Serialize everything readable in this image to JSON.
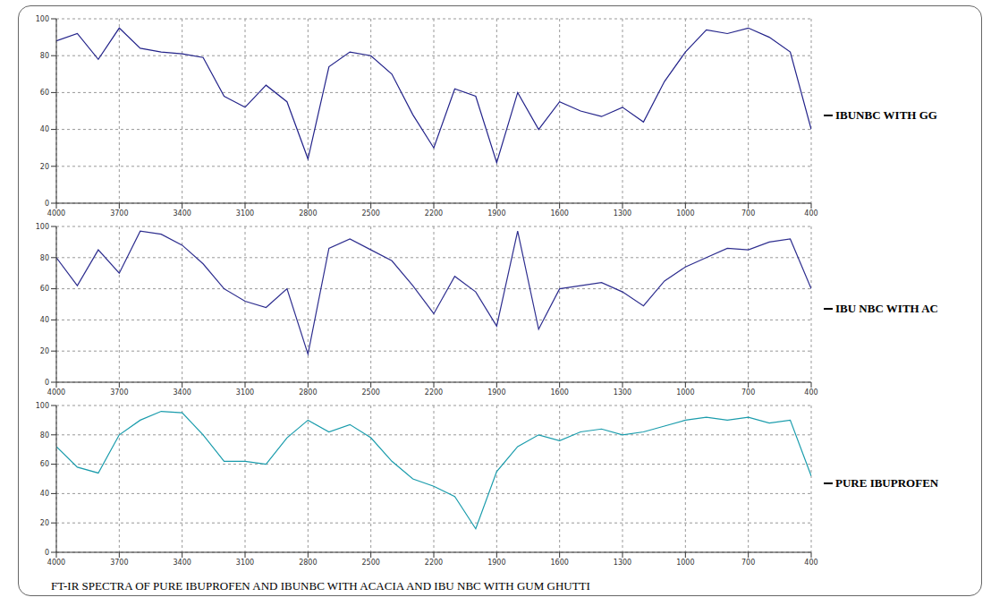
{
  "caption": "FT-IR SPECTRA OF PURE IBUPROFEN AND IBUNBC WITH ACACIA AND IBU NBC WITH GUM GHUTTI",
  "chart_data": [
    {
      "type": "line",
      "title": "IBUNBC WITH GG",
      "color": "#23238a",
      "grid": true,
      "xlim": [
        4000,
        400
      ],
      "xticks": [
        4000,
        3700,
        3400,
        3100,
        2800,
        2500,
        2200,
        1900,
        1600,
        1300,
        1000,
        700,
        400
      ],
      "ylim": [
        0,
        100
      ],
      "yticks": [
        0,
        20,
        40,
        60,
        80,
        100
      ],
      "x": [
        4000,
        3900,
        3800,
        3700,
        3600,
        3500,
        3400,
        3300,
        3200,
        3100,
        3000,
        2900,
        2800,
        2700,
        2600,
        2500,
        2400,
        2300,
        2200,
        2100,
        2000,
        1900,
        1800,
        1700,
        1600,
        1500,
        1400,
        1300,
        1200,
        1100,
        1000,
        900,
        800,
        700,
        600,
        500,
        400
      ],
      "values": [
        88,
        92,
        78,
        95,
        84,
        82,
        81,
        79,
        58,
        52,
        64,
        55,
        24,
        74,
        82,
        80,
        70,
        48,
        30,
        62,
        58,
        22,
        60,
        40,
        55,
        50,
        47,
        52,
        44,
        66,
        82,
        94,
        92,
        95,
        90,
        82,
        40
      ]
    },
    {
      "type": "line",
      "title": "IBU NBC WITH AC",
      "color": "#2e2e8f",
      "grid": true,
      "xlim": [
        4000,
        400
      ],
      "xticks": [
        4000,
        3700,
        3400,
        3100,
        2800,
        2500,
        2200,
        1900,
        1600,
        1300,
        1000,
        700,
        400
      ],
      "ylim": [
        0,
        100
      ],
      "yticks": [
        0,
        20,
        40,
        60,
        80,
        100
      ],
      "x": [
        4000,
        3900,
        3800,
        3700,
        3600,
        3500,
        3400,
        3300,
        3200,
        3100,
        3000,
        2900,
        2800,
        2700,
        2600,
        2500,
        2400,
        2300,
        2200,
        2100,
        2000,
        1900,
        1800,
        1700,
        1600,
        1500,
        1400,
        1300,
        1200,
        1100,
        1000,
        900,
        800,
        700,
        600,
        500,
        400
      ],
      "values": [
        80,
        62,
        85,
        70,
        97,
        95,
        88,
        76,
        60,
        52,
        48,
        60,
        18,
        86,
        92,
        85,
        78,
        62,
        44,
        68,
        58,
        36,
        97,
        34,
        60,
        62,
        64,
        58,
        49,
        65,
        74,
        80,
        86,
        85,
        90,
        92,
        60
      ]
    },
    {
      "type": "line",
      "title": "PURE IBUPROFEN",
      "color": "#1a9cac",
      "grid": true,
      "xlim": [
        4000,
        400
      ],
      "xticks": [
        4000,
        3700,
        3400,
        3100,
        2800,
        2500,
        2200,
        1900,
        1600,
        1300,
        1000,
        700,
        400
      ],
      "ylim": [
        0,
        100
      ],
      "yticks": [
        0,
        20,
        40,
        60,
        80,
        100
      ],
      "x": [
        4000,
        3900,
        3800,
        3700,
        3600,
        3500,
        3400,
        3300,
        3200,
        3100,
        3000,
        2900,
        2800,
        2700,
        2600,
        2500,
        2400,
        2300,
        2200,
        2100,
        2000,
        1900,
        1800,
        1700,
        1600,
        1500,
        1400,
        1300,
        1200,
        1100,
        1000,
        900,
        800,
        700,
        600,
        500,
        400
      ],
      "values": [
        72,
        58,
        54,
        80,
        90,
        96,
        95,
        80,
        62,
        62,
        60,
        78,
        90,
        82,
        87,
        78,
        62,
        50,
        45,
        38,
        16,
        55,
        72,
        80,
        76,
        82,
        84,
        80,
        82,
        86,
        90,
        92,
        90,
        92,
        88,
        90,
        52
      ]
    }
  ]
}
